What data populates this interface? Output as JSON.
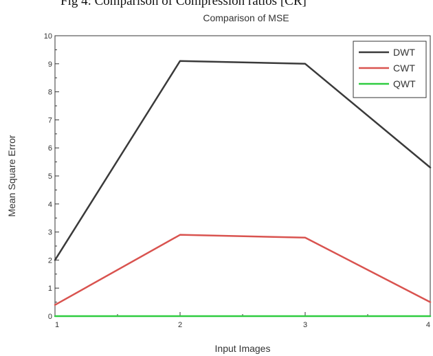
{
  "caption": "Fig 4: Comparison of Compression ratios [CR]",
  "chart_data": {
    "type": "line",
    "title": "Comparison of MSE",
    "xlabel": "Input Images",
    "ylabel": "Mean Square Error",
    "x": [
      1,
      2,
      3,
      4
    ],
    "xticks": [
      "1",
      "2",
      "3",
      "4"
    ],
    "xlim": [
      1,
      4
    ],
    "ylim": [
      0,
      10
    ],
    "yticks": [
      "0",
      "1",
      "2",
      "3",
      "4",
      "5",
      "6",
      "7",
      "8",
      "9",
      "10"
    ],
    "grid": false,
    "legend": "top-right",
    "series": [
      {
        "name": "DWT",
        "color": "#3a3a3a",
        "values": [
          2.0,
          9.1,
          9.0,
          5.3
        ]
      },
      {
        "name": "CWT",
        "color": "#d9534f",
        "values": [
          0.4,
          2.9,
          2.8,
          0.5
        ]
      },
      {
        "name": "QWT",
        "color": "#2ecc40",
        "values": [
          0.0,
          0.0,
          0.0,
          0.0
        ]
      }
    ]
  }
}
